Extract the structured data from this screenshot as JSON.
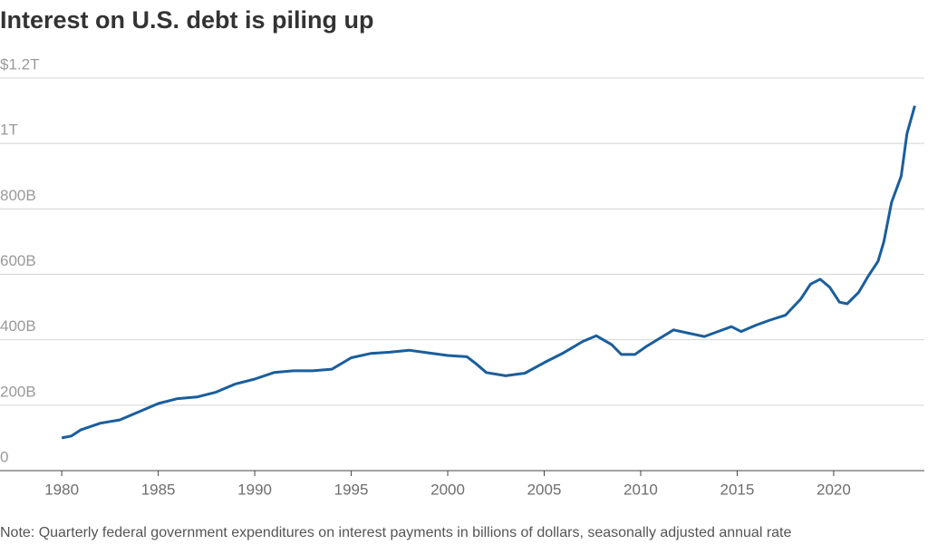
{
  "chart_data": {
    "type": "line",
    "title": "Interest on U.S. debt is piling up",
    "note": "Note: Quarterly federal government expenditures on interest payments in billions of dollars, seasonally adjusted annual rate",
    "x": [
      1980,
      1980.5,
      1981,
      1982,
      1983,
      1984,
      1985,
      1986,
      1987,
      1988,
      1989,
      1990,
      1991,
      1992,
      1993,
      1994,
      1995,
      1996,
      1997,
      1998,
      1999,
      2000,
      2001,
      2001.5,
      2002,
      2003,
      2004,
      2005,
      2006,
      2007,
      2007.7,
      2008.5,
      2009,
      2009.7,
      2010.3,
      2011,
      2011.7,
      2012.5,
      2013.3,
      2014,
      2014.7,
      2015.2,
      2016,
      2016.7,
      2017.5,
      2018.3,
      2018.8,
      2019.3,
      2019.8,
      2020.3,
      2020.7,
      2021.3,
      2021.8,
      2022.3,
      2022.6,
      2023,
      2023.5,
      2023.8,
      2024.2
    ],
    "series": [
      {
        "name": "Interest payments",
        "color": "#1a5e9c",
        "values": [
          100,
          106,
          125,
          145,
          155,
          180,
          205,
          220,
          225,
          240,
          265,
          280,
          300,
          305,
          305,
          310,
          345,
          358,
          362,
          368,
          360,
          352,
          348,
          325,
          300,
          290,
          298,
          330,
          360,
          395,
          412,
          385,
          355,
          355,
          380,
          405,
          430,
          420,
          410,
          425,
          440,
          425,
          445,
          460,
          475,
          525,
          570,
          585,
          560,
          515,
          510,
          545,
          595,
          640,
          700,
          820,
          900,
          1030,
          1115
        ]
      }
    ],
    "xlim": [
      1976.8,
      2024.7
    ],
    "xticks": [
      1980,
      1985,
      1990,
      1995,
      2000,
      2005,
      2010,
      2015,
      2020
    ],
    "ylim": [
      0,
      1200
    ],
    "yticks": [
      0,
      {
        "value": 200,
        "label": "200B"
      },
      {
        "value": 400,
        "label": "400B"
      },
      {
        "value": 600,
        "label": "600B"
      },
      {
        "value": 800,
        "label": "800B"
      },
      {
        "value": 1000,
        "label": "1T"
      },
      {
        "value": 1200,
        "label": "$1.2T"
      }
    ],
    "grid": true
  }
}
